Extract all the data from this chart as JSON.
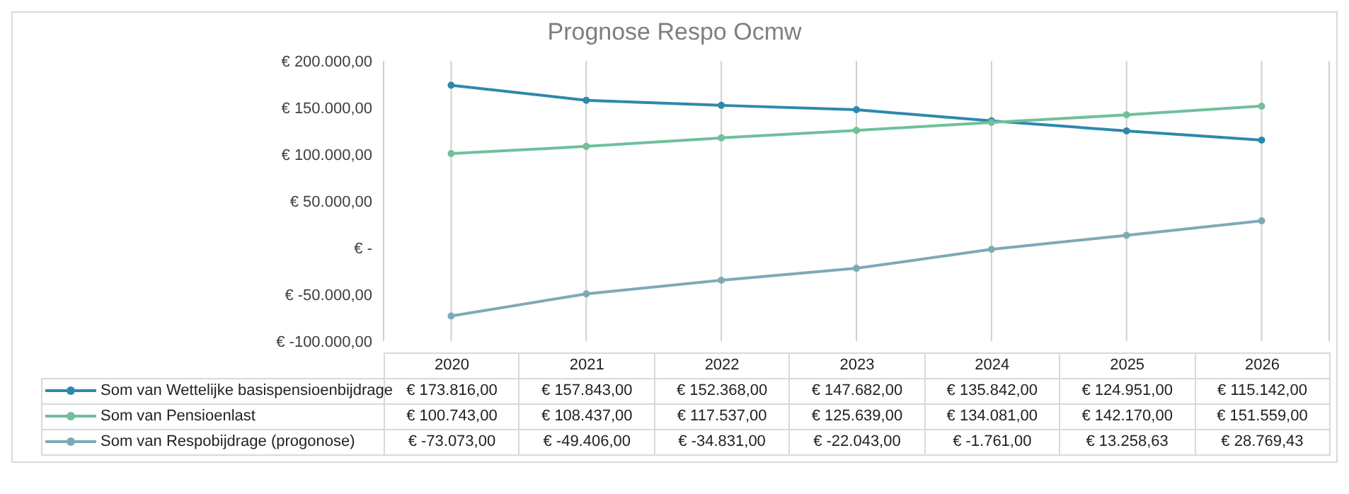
{
  "chart_data": {
    "type": "line",
    "title": "Prognose Respo Ocmw",
    "categories": [
      "2020",
      "2021",
      "2022",
      "2023",
      "2024",
      "2025",
      "2026"
    ],
    "series": [
      {
        "name": "Som van Wettelijke basispensioenbijdrage",
        "color": "#2e88ad",
        "values": [
          173816,
          157843,
          152368,
          147682,
          135842,
          124951,
          115142
        ],
        "value_labels": [
          "€ 173.816,00",
          "€ 157.843,00",
          "€ 152.368,00",
          "€ 147.682,00",
          "€ 135.842,00",
          "€ 124.951,00",
          "€ 115.142,00"
        ]
      },
      {
        "name": "Som van Pensioenlast",
        "color": "#6fc09b",
        "values": [
          100743,
          108437,
          117537,
          125639,
          134081,
          142170,
          151559
        ],
        "value_labels": [
          "€ 100.743,00",
          "€ 108.437,00",
          "€ 117.537,00",
          "€ 125.639,00",
          "€ 134.081,00",
          "€ 142.170,00",
          "€ 151.559,00"
        ]
      },
      {
        "name": "Som van Respobijdrage (progonose)",
        "color": "#7eaab6",
        "values": [
          -73073,
          -49406,
          -34831,
          -22043,
          -1761,
          13258.63,
          28769.43
        ],
        "value_labels": [
          "€ -73.073,00",
          "€ -49.406,00",
          "€ -34.831,00",
          "€ -22.043,00",
          "€ -1.761,00",
          "€ 13.258,63",
          "€ 28.769,43"
        ]
      }
    ],
    "ylim": [
      -100000,
      200000
    ],
    "yticks": [
      {
        "value": -100000,
        "label": "€ -100.000,00"
      },
      {
        "value": -50000,
        "label": "€ -50.000,00"
      },
      {
        "value": 0,
        "label": "€ -"
      },
      {
        "value": 50000,
        "label": "€ 50.000,00"
      },
      {
        "value": 100000,
        "label": "€ 100.000,00"
      },
      {
        "value": 150000,
        "label": "€ 150.000,00"
      },
      {
        "value": 200000,
        "label": "€ 200.000,00"
      }
    ],
    "grid": "x",
    "legend": "bottom",
    "marker": "circle",
    "line_style": "solid"
  }
}
